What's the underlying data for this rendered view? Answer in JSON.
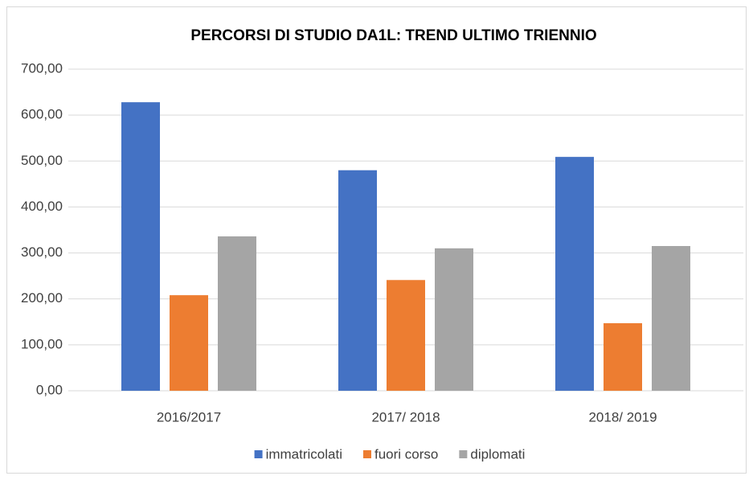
{
  "chart_data": {
    "type": "bar",
    "title": "PERCORSI DI STUDIO DA1L: TREND ULTIMO TRIENNIO",
    "categories": [
      "2016/2017",
      "2017/ 2018",
      "2018/ 2019"
    ],
    "series": [
      {
        "name": "immatricolati",
        "color": "#4472c4",
        "values": [
          628,
          480,
          509
        ]
      },
      {
        "name": "fuori corso",
        "color": "#ed7d31",
        "values": [
          208,
          241,
          147
        ]
      },
      {
        "name": "diplomati",
        "color": "#a5a5a5",
        "values": [
          336,
          310,
          315
        ]
      }
    ],
    "ylim": [
      0,
      700
    ],
    "yticks": [
      {
        "value": 0,
        "label": "0,00"
      },
      {
        "value": 100,
        "label": "100,00"
      },
      {
        "value": 200,
        "label": "200,00"
      },
      {
        "value": 300,
        "label": "300,00"
      },
      {
        "value": 400,
        "label": "400,00"
      },
      {
        "value": 500,
        "label": "500,00"
      },
      {
        "value": 600,
        "label": "600,00"
      },
      {
        "value": 700,
        "label": "700,00"
      }
    ],
    "grid": true,
    "legend": "bottom"
  }
}
